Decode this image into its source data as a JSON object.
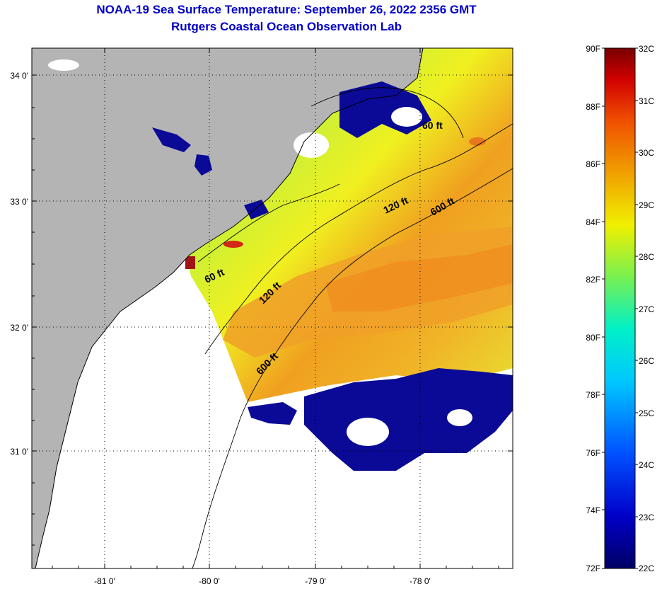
{
  "titles": {
    "line1": "NOAA-19 Sea Surface Temperature:  September 26, 2022 2356 GMT",
    "line2": "Rutgers Coastal Ocean Observation Lab"
  },
  "map": {
    "lat_labels": [
      "34 0'",
      "33 0'",
      "32 0'",
      "31 0'"
    ],
    "lon_labels": [
      "-81 0'",
      "-80 0'",
      "-79 0'",
      "-78 0'"
    ],
    "isobath_labels": [
      "60 ft",
      "120 ft",
      "600 ft",
      "60 ft",
      "120 ft",
      "600 ft"
    ]
  },
  "colorbar": {
    "fahrenheit_labels": [
      "90F",
      "88F",
      "86F",
      "84F",
      "82F",
      "80F",
      "78F",
      "76F",
      "74F",
      "72F"
    ],
    "celsius_labels": [
      "32C",
      "31C",
      "30C",
      "29C",
      "28C",
      "27C",
      "26C",
      "25C",
      "24C",
      "23C",
      "22C"
    ]
  },
  "colors": {
    "title": "#0000c8",
    "land": "#b4b4b4",
    "cloud_cold": "#0a0a96",
    "warm": "#f08c1e",
    "hot": "#a01414"
  }
}
